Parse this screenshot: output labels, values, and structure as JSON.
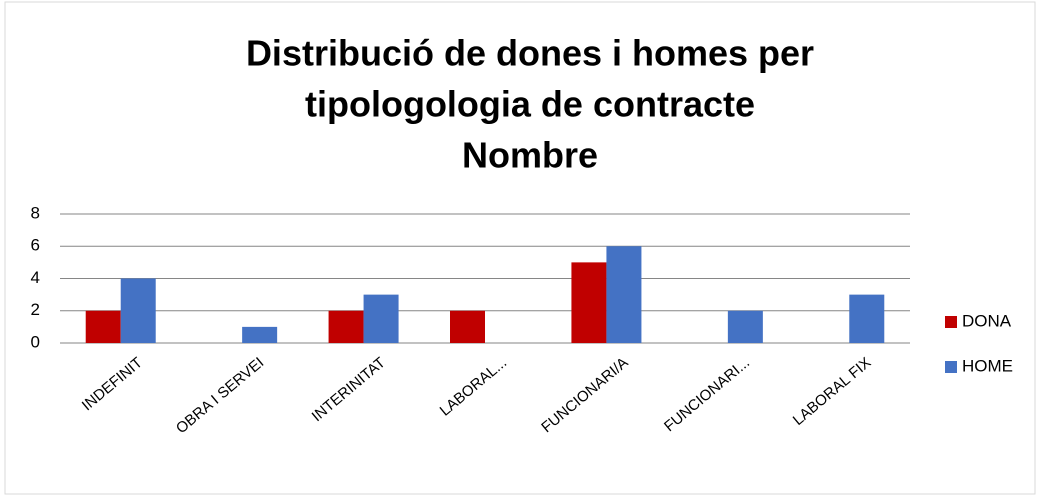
{
  "chart_data": {
    "type": "bar",
    "title": [
      "Distribució de dones i homes per",
      "tipologologia de contracte",
      "Nombre"
    ],
    "categories": [
      "INDEFINIT",
      "OBRA I SERVEI",
      "INTERINITAT",
      "LABORAL...",
      "FUNCIONARI/A",
      "FUNCIONARI...",
      "LABORAL FIX"
    ],
    "series": [
      {
        "name": "DONA",
        "color": "#c00000",
        "values": [
          2,
          0,
          2,
          2,
          5,
          0,
          0
        ]
      },
      {
        "name": "HOME",
        "color": "#4472c4",
        "values": [
          4,
          1,
          3,
          0,
          6,
          2,
          3
        ]
      }
    ],
    "ylim": [
      0,
      8
    ],
    "yticks": [
      0,
      2,
      4,
      6,
      8
    ],
    "grid": true,
    "legend": "right"
  }
}
